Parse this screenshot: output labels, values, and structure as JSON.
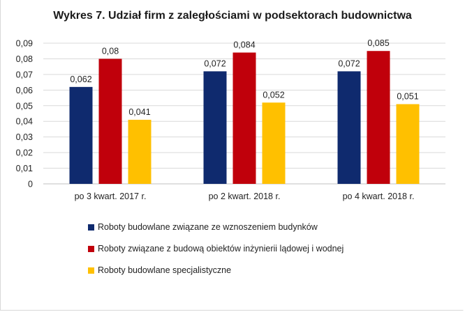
{
  "title": "Wykres 7. Udział firm z zaległościami w podsektorach budownictwa",
  "chart_data": {
    "type": "bar",
    "title": "Wykres 7. Udział firm z zaległościami w podsektorach budownictwa",
    "categories": [
      "po 3 kwart. 2017 r.",
      "po 2 kwart. 2018 r.",
      "po 4 kwart. 2018 r."
    ],
    "series": [
      {
        "name": "Roboty budowlane związane ze wznoszeniem budynków",
        "color": "#0f2a6e",
        "values": [
          0.062,
          0.072,
          0.072
        ],
        "labels": [
          "0,062",
          "0,072",
          "0,072"
        ]
      },
      {
        "name": "Roboty związane z budową obiektów inżynierii lądowej i wodnej",
        "color": "#c0000b",
        "values": [
          0.08,
          0.084,
          0.085
        ],
        "labels": [
          "0,08",
          "0,084",
          "0,085"
        ]
      },
      {
        "name": "Roboty budowlane specjalistyczne",
        "color": "#ffc000",
        "values": [
          0.041,
          0.052,
          0.051
        ],
        "labels": [
          "0,041",
          "0,052",
          "0,051"
        ]
      }
    ],
    "ylim": [
      0,
      0.09
    ],
    "yticks": [
      0,
      0.01,
      0.02,
      0.03,
      0.04,
      0.05,
      0.06,
      0.07,
      0.08,
      0.09
    ],
    "ytick_labels": [
      "0",
      "0,01",
      "0,02",
      "0,03",
      "0,04",
      "0,05",
      "0,06",
      "0,07",
      "0,08",
      "0,09"
    ],
    "grid": true,
    "legend_position": "bottom"
  }
}
